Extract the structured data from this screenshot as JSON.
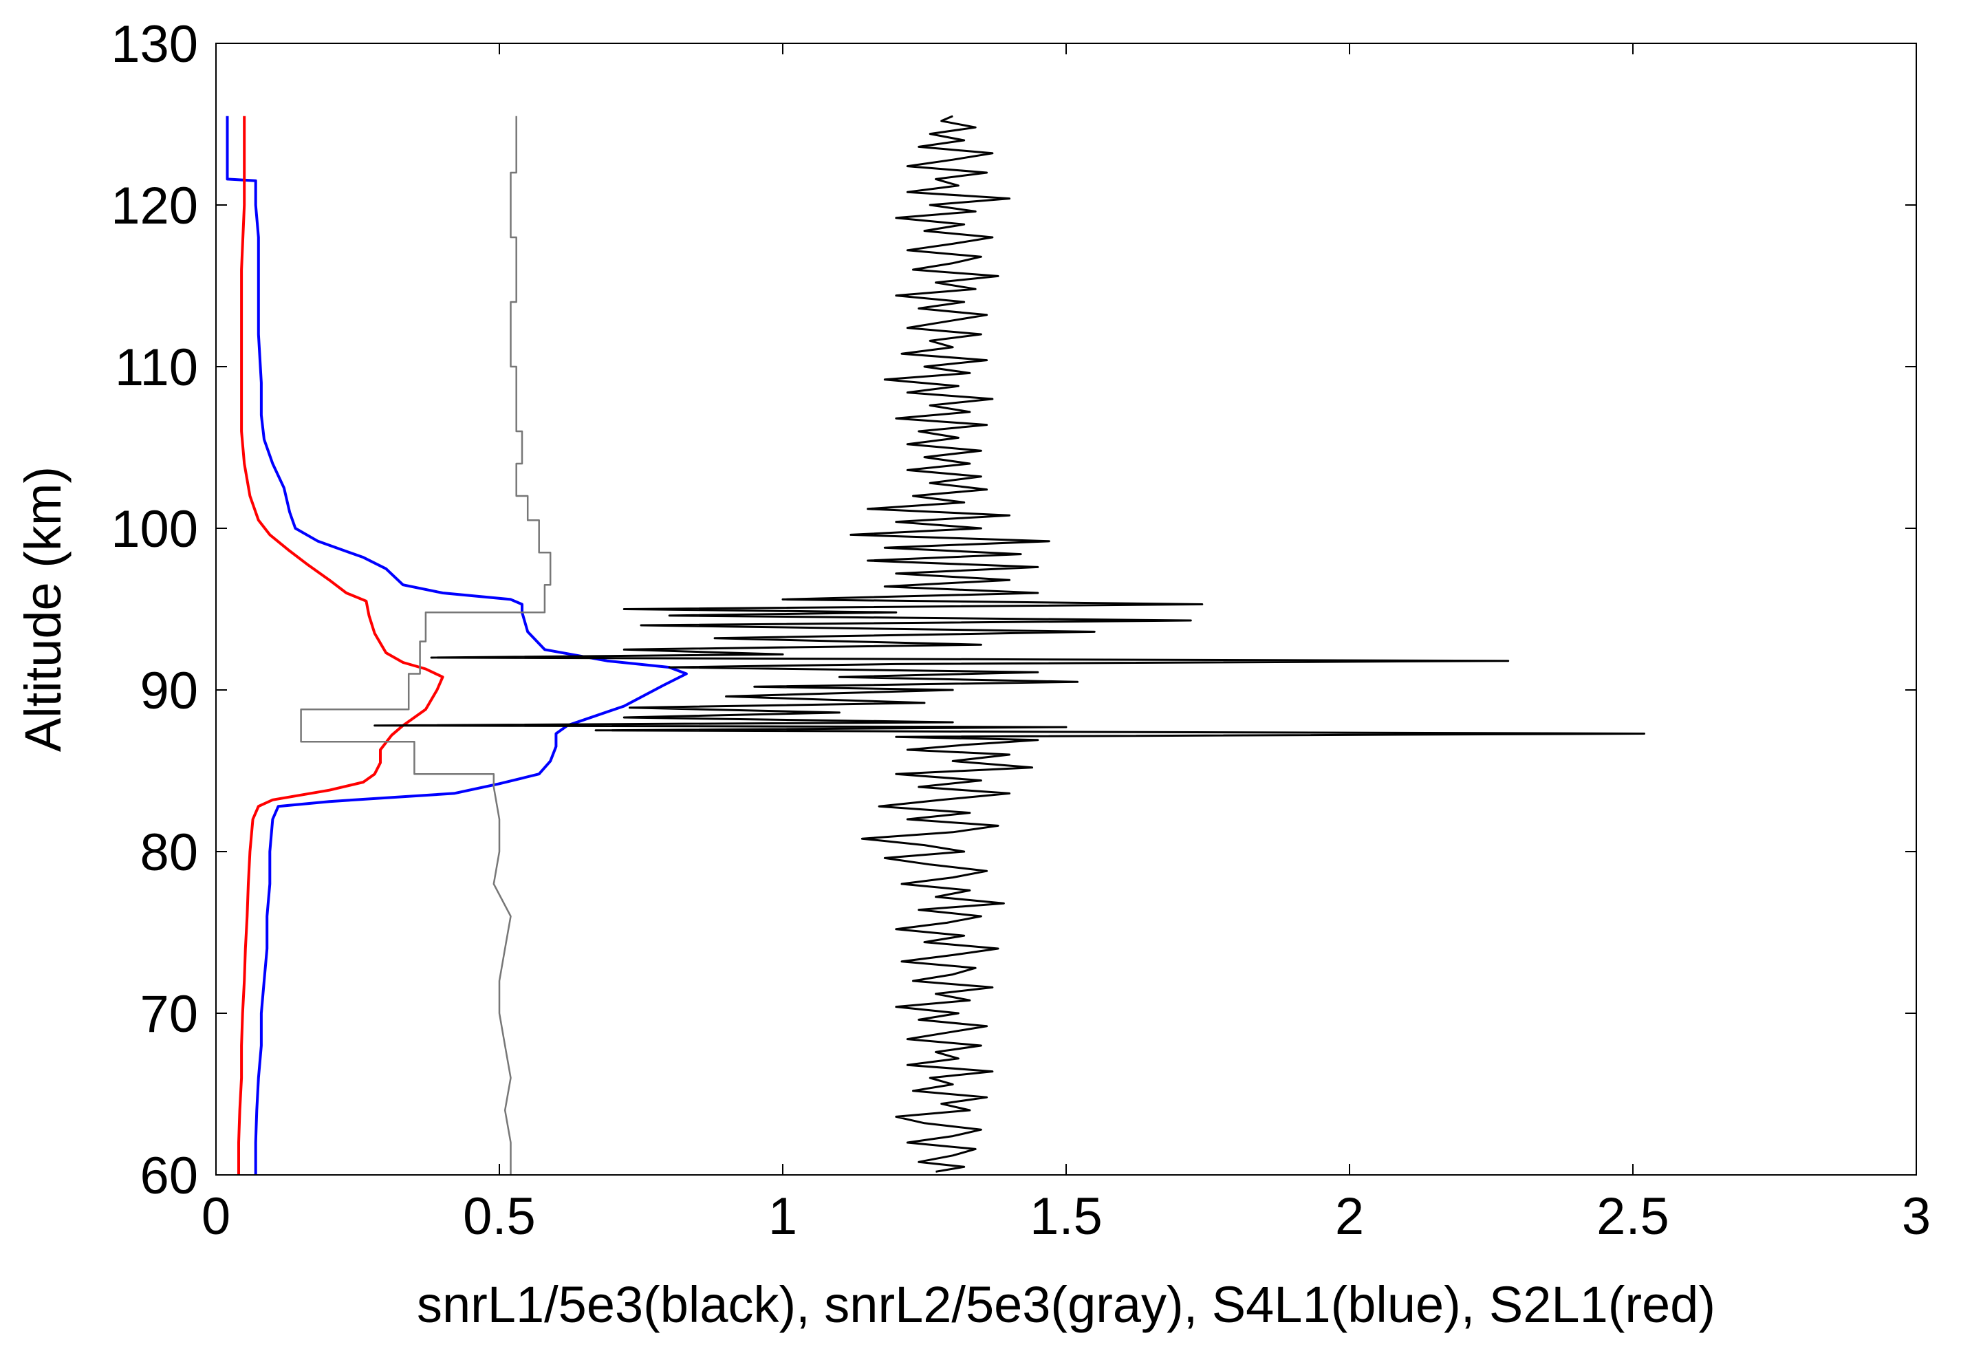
{
  "chart_data": {
    "type": "line",
    "title": "",
    "xlabel": "snrL1/5e3(black), snrL2/5e3(gray), S4L1(blue), S2L1(red)",
    "ylabel": "Altitude (km)",
    "xlim": [
      0,
      3
    ],
    "ylim": [
      60,
      130
    ],
    "xticks": [
      0,
      0.5,
      1,
      1.5,
      2,
      2.5,
      3
    ],
    "xtick_labels": [
      "0",
      "0.5",
      "1",
      "1.5",
      "2",
      "2.5",
      "3"
    ],
    "yticks": [
      60,
      70,
      80,
      90,
      100,
      110,
      120,
      130
    ],
    "ytick_labels": [
      "60",
      "70",
      "80",
      "90",
      "100",
      "110",
      "120",
      "130"
    ],
    "grid": false,
    "legend": "none",
    "series": [
      {
        "color": "#0000ff",
        "points": [
          [
            0.07,
            60
          ],
          [
            0.07,
            62
          ],
          [
            0.072,
            64
          ],
          [
            0.075,
            66
          ],
          [
            0.08,
            68
          ],
          [
            0.08,
            70
          ],
          [
            0.085,
            72
          ],
          [
            0.09,
            74
          ],
          [
            0.09,
            76
          ],
          [
            0.095,
            78
          ],
          [
            0.095,
            80
          ],
          [
            0.1,
            82
          ],
          [
            0.11,
            82.8
          ],
          [
            0.2,
            83.1
          ],
          [
            0.42,
            83.6
          ],
          [
            0.5,
            84.2
          ],
          [
            0.57,
            84.8
          ],
          [
            0.59,
            85.6
          ],
          [
            0.6,
            86.5
          ],
          [
            0.6,
            87.3
          ],
          [
            0.62,
            87.8
          ],
          [
            0.72,
            89
          ],
          [
            0.79,
            90.3
          ],
          [
            0.83,
            91
          ],
          [
            0.8,
            91.4
          ],
          [
            0.69,
            91.8
          ],
          [
            0.58,
            92.5
          ],
          [
            0.55,
            93.6
          ],
          [
            0.54,
            94.8
          ],
          [
            0.54,
            95.3
          ],
          [
            0.52,
            95.6
          ],
          [
            0.4,
            96
          ],
          [
            0.33,
            96.5
          ],
          [
            0.3,
            97.5
          ],
          [
            0.26,
            98.2
          ],
          [
            0.18,
            99.2
          ],
          [
            0.14,
            100
          ],
          [
            0.13,
            101
          ],
          [
            0.12,
            102.5
          ],
          [
            0.1,
            104
          ],
          [
            0.085,
            105.5
          ],
          [
            0.08,
            107
          ],
          [
            0.08,
            109
          ],
          [
            0.075,
            112
          ],
          [
            0.075,
            115
          ],
          [
            0.075,
            118
          ],
          [
            0.07,
            120
          ],
          [
            0.07,
            121.5
          ],
          [
            0.02,
            121.6
          ],
          [
            0.02,
            125.5
          ]
        ]
      },
      {
        "color": "#ff0000",
        "points": [
          [
            0.04,
            60
          ],
          [
            0.04,
            62
          ],
          [
            0.042,
            64
          ],
          [
            0.045,
            66
          ],
          [
            0.045,
            68
          ],
          [
            0.047,
            70
          ],
          [
            0.05,
            72
          ],
          [
            0.052,
            74
          ],
          [
            0.055,
            76
          ],
          [
            0.057,
            78
          ],
          [
            0.06,
            80
          ],
          [
            0.065,
            82
          ],
          [
            0.075,
            82.8
          ],
          [
            0.1,
            83.2
          ],
          [
            0.2,
            83.8
          ],
          [
            0.26,
            84.3
          ],
          [
            0.28,
            84.8
          ],
          [
            0.29,
            85.5
          ],
          [
            0.29,
            86.3
          ],
          [
            0.31,
            87.2
          ],
          [
            0.33,
            87.8
          ],
          [
            0.37,
            88.8
          ],
          [
            0.39,
            90
          ],
          [
            0.4,
            90.8
          ],
          [
            0.37,
            91.3
          ],
          [
            0.33,
            91.7
          ],
          [
            0.3,
            92.3
          ],
          [
            0.28,
            93.5
          ],
          [
            0.27,
            94.6
          ],
          [
            0.265,
            95.5
          ],
          [
            0.23,
            96
          ],
          [
            0.2,
            96.8
          ],
          [
            0.16,
            97.8
          ],
          [
            0.13,
            98.6
          ],
          [
            0.095,
            99.6
          ],
          [
            0.075,
            100.5
          ],
          [
            0.06,
            102
          ],
          [
            0.05,
            104
          ],
          [
            0.045,
            106
          ],
          [
            0.045,
            108
          ],
          [
            0.045,
            112
          ],
          [
            0.045,
            116
          ],
          [
            0.05,
            120
          ],
          [
            0.05,
            123
          ],
          [
            0.05,
            125.5
          ]
        ]
      },
      {
        "color": "#777777",
        "points": [
          [
            0.52,
            60
          ],
          [
            0.52,
            62
          ],
          [
            0.51,
            64
          ],
          [
            0.52,
            66
          ],
          [
            0.51,
            68
          ],
          [
            0.5,
            70
          ],
          [
            0.5,
            72
          ],
          [
            0.51,
            74
          ],
          [
            0.52,
            76
          ],
          [
            0.49,
            78
          ],
          [
            0.5,
            80
          ],
          [
            0.5,
            82
          ],
          [
            0.49,
            84
          ],
          [
            0.49,
            84.8
          ],
          [
            0.35,
            84.8
          ],
          [
            0.35,
            86.8
          ],
          [
            0.15,
            86.8
          ],
          [
            0.15,
            88.8
          ],
          [
            0.34,
            88.8
          ],
          [
            0.34,
            91
          ],
          [
            0.36,
            91
          ],
          [
            0.36,
            93
          ],
          [
            0.37,
            93
          ],
          [
            0.37,
            94.8
          ],
          [
            0.58,
            94.8
          ],
          [
            0.58,
            96.5
          ],
          [
            0.59,
            96.5
          ],
          [
            0.59,
            98.5
          ],
          [
            0.57,
            98.5
          ],
          [
            0.57,
            100.5
          ],
          [
            0.55,
            100.5
          ],
          [
            0.55,
            102
          ],
          [
            0.53,
            102
          ],
          [
            0.53,
            104
          ],
          [
            0.54,
            104
          ],
          [
            0.54,
            106
          ],
          [
            0.53,
            106
          ],
          [
            0.53,
            110
          ],
          [
            0.52,
            110
          ],
          [
            0.52,
            114
          ],
          [
            0.53,
            114
          ],
          [
            0.53,
            118
          ],
          [
            0.52,
            118
          ],
          [
            0.52,
            122
          ],
          [
            0.53,
            122
          ],
          [
            0.53,
            125.5
          ]
        ]
      },
      {
        "color": "#000000",
        "points": [
          [
            1.27,
            60.2
          ],
          [
            1.32,
            60.5
          ],
          [
            1.24,
            60.8
          ],
          [
            1.3,
            61.2
          ],
          [
            1.34,
            61.6
          ],
          [
            1.22,
            62
          ],
          [
            1.3,
            62.4
          ],
          [
            1.35,
            62.8
          ],
          [
            1.25,
            63.2
          ],
          [
            1.2,
            63.6
          ],
          [
            1.33,
            64
          ],
          [
            1.28,
            64.4
          ],
          [
            1.36,
            64.8
          ],
          [
            1.23,
            65.2
          ],
          [
            1.3,
            65.6
          ],
          [
            1.26,
            66
          ],
          [
            1.37,
            66.4
          ],
          [
            1.22,
            66.8
          ],
          [
            1.31,
            67.2
          ],
          [
            1.27,
            67.6
          ],
          [
            1.35,
            68
          ],
          [
            1.22,
            68.4
          ],
          [
            1.29,
            68.8
          ],
          [
            1.36,
            69.2
          ],
          [
            1.24,
            69.6
          ],
          [
            1.31,
            70
          ],
          [
            1.2,
            70.4
          ],
          [
            1.33,
            70.8
          ],
          [
            1.27,
            71.2
          ],
          [
            1.37,
            71.6
          ],
          [
            1.23,
            72
          ],
          [
            1.3,
            72.4
          ],
          [
            1.34,
            72.8
          ],
          [
            1.21,
            73.2
          ],
          [
            1.3,
            73.6
          ],
          [
            1.38,
            74
          ],
          [
            1.25,
            74.4
          ],
          [
            1.32,
            74.8
          ],
          [
            1.2,
            75.2
          ],
          [
            1.29,
            75.6
          ],
          [
            1.35,
            76
          ],
          [
            1.24,
            76.4
          ],
          [
            1.39,
            76.8
          ],
          [
            1.27,
            77.2
          ],
          [
            1.33,
            77.6
          ],
          [
            1.21,
            78
          ],
          [
            1.3,
            78.4
          ],
          [
            1.36,
            78.8
          ],
          [
            1.26,
            79.2
          ],
          [
            1.18,
            79.6
          ],
          [
            1.32,
            80
          ],
          [
            1.25,
            80.4
          ],
          [
            1.14,
            80.8
          ],
          [
            1.3,
            81.2
          ],
          [
            1.38,
            81.6
          ],
          [
            1.22,
            82
          ],
          [
            1.33,
            82.4
          ],
          [
            1.17,
            82.8
          ],
          [
            1.28,
            83.2
          ],
          [
            1.4,
            83.6
          ],
          [
            1.24,
            84
          ],
          [
            1.35,
            84.4
          ],
          [
            1.2,
            84.8
          ],
          [
            1.44,
            85.2
          ],
          [
            1.3,
            85.6
          ],
          [
            1.4,
            86
          ],
          [
            1.22,
            86.3
          ],
          [
            1.32,
            86.6
          ],
          [
            1.45,
            86.9
          ],
          [
            1.2,
            87.1
          ],
          [
            2.52,
            87.3
          ],
          [
            0.67,
            87.5
          ],
          [
            1.5,
            87.7
          ],
          [
            0.28,
            87.8
          ],
          [
            1.3,
            88
          ],
          [
            0.72,
            88.3
          ],
          [
            1.1,
            88.6
          ],
          [
            0.73,
            88.9
          ],
          [
            1.25,
            89.2
          ],
          [
            0.9,
            89.6
          ],
          [
            1.3,
            90
          ],
          [
            0.95,
            90.2
          ],
          [
            1.52,
            90.5
          ],
          [
            1.1,
            90.8
          ],
          [
            1.45,
            91.1
          ],
          [
            0.8,
            91.4
          ],
          [
            1.2,
            91.6
          ],
          [
            2.28,
            91.8
          ],
          [
            0.38,
            92
          ],
          [
            1.0,
            92.2
          ],
          [
            0.72,
            92.5
          ],
          [
            1.35,
            92.8
          ],
          [
            0.88,
            93.2
          ],
          [
            1.55,
            93.6
          ],
          [
            0.75,
            94
          ],
          [
            1.72,
            94.3
          ],
          [
            0.8,
            94.6
          ],
          [
            1.2,
            94.8
          ],
          [
            0.72,
            95
          ],
          [
            1.74,
            95.3
          ],
          [
            1.0,
            95.6
          ],
          [
            1.45,
            96
          ],
          [
            1.18,
            96.4
          ],
          [
            1.4,
            96.8
          ],
          [
            1.2,
            97.2
          ],
          [
            1.45,
            97.6
          ],
          [
            1.15,
            98
          ],
          [
            1.42,
            98.4
          ],
          [
            1.18,
            98.8
          ],
          [
            1.47,
            99.2
          ],
          [
            1.12,
            99.6
          ],
          [
            1.35,
            100
          ],
          [
            1.2,
            100.4
          ],
          [
            1.4,
            100.8
          ],
          [
            1.15,
            101.2
          ],
          [
            1.32,
            101.6
          ],
          [
            1.23,
            102
          ],
          [
            1.36,
            102.4
          ],
          [
            1.26,
            102.8
          ],
          [
            1.35,
            103.2
          ],
          [
            1.22,
            103.6
          ],
          [
            1.33,
            104
          ],
          [
            1.25,
            104.4
          ],
          [
            1.35,
            104.8
          ],
          [
            1.22,
            105.2
          ],
          [
            1.31,
            105.6
          ],
          [
            1.24,
            106
          ],
          [
            1.36,
            106.4
          ],
          [
            1.2,
            106.8
          ],
          [
            1.33,
            107.2
          ],
          [
            1.26,
            107.6
          ],
          [
            1.37,
            108
          ],
          [
            1.22,
            108.4
          ],
          [
            1.31,
            108.8
          ],
          [
            1.18,
            109.2
          ],
          [
            1.33,
            109.6
          ],
          [
            1.25,
            110
          ],
          [
            1.36,
            110.4
          ],
          [
            1.21,
            110.8
          ],
          [
            1.3,
            111.2
          ],
          [
            1.26,
            111.6
          ],
          [
            1.35,
            112
          ],
          [
            1.22,
            112.4
          ],
          [
            1.29,
            112.8
          ],
          [
            1.36,
            113.2
          ],
          [
            1.24,
            113.6
          ],
          [
            1.32,
            114
          ],
          [
            1.2,
            114.4
          ],
          [
            1.34,
            114.8
          ],
          [
            1.27,
            115.2
          ],
          [
            1.38,
            115.6
          ],
          [
            1.23,
            116
          ],
          [
            1.3,
            116.4
          ],
          [
            1.35,
            116.8
          ],
          [
            1.22,
            117.2
          ],
          [
            1.3,
            117.6
          ],
          [
            1.37,
            118
          ],
          [
            1.25,
            118.4
          ],
          [
            1.32,
            118.8
          ],
          [
            1.2,
            119.2
          ],
          [
            1.34,
            119.6
          ],
          [
            1.26,
            120
          ],
          [
            1.4,
            120.4
          ],
          [
            1.22,
            120.8
          ],
          [
            1.31,
            121.2
          ],
          [
            1.27,
            121.6
          ],
          [
            1.36,
            122
          ],
          [
            1.22,
            122.4
          ],
          [
            1.3,
            122.8
          ],
          [
            1.37,
            123.2
          ],
          [
            1.24,
            123.6
          ],
          [
            1.32,
            124
          ],
          [
            1.26,
            124.4
          ],
          [
            1.34,
            124.8
          ],
          [
            1.28,
            125.2
          ],
          [
            1.3,
            125.5
          ]
        ]
      }
    ]
  }
}
